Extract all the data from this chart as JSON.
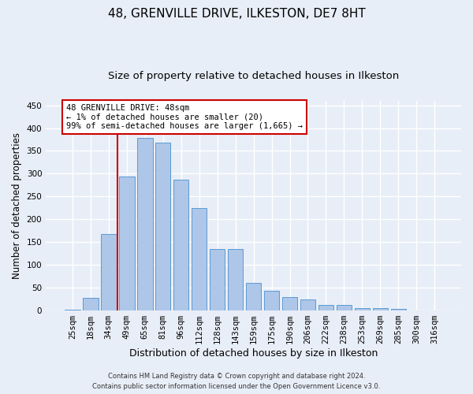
{
  "title": "48, GRENVILLE DRIVE, ILKESTON, DE7 8HT",
  "subtitle": "Size of property relative to detached houses in Ilkeston",
  "xlabel": "Distribution of detached houses by size in Ilkeston",
  "ylabel": "Number of detached properties",
  "categories": [
    "25sqm",
    "18sqm",
    "34sqm",
    "49sqm",
    "65sqm",
    "81sqm",
    "96sqm",
    "112sqm",
    "128sqm",
    "143sqm",
    "159sqm",
    "175sqm",
    "190sqm",
    "206sqm",
    "222sqm",
    "238sqm",
    "253sqm",
    "269sqm",
    "285sqm",
    "300sqm",
    "316sqm"
  ],
  "values": [
    2,
    27,
    168,
    293,
    379,
    368,
    287,
    225,
    135,
    135,
    60,
    43,
    30,
    24,
    12,
    12,
    6,
    5,
    3,
    1,
    1
  ],
  "bar_color": "#aec6e8",
  "bar_edge_color": "#5b9bd5",
  "vline_x_index": 3,
  "vline_color": "#cc0000",
  "annotation_text": "48 GRENVILLE DRIVE: 48sqm\n← 1% of detached houses are smaller (20)\n99% of semi-detached houses are larger (1,665) →",
  "annotation_box_color": "#ffffff",
  "annotation_box_edgecolor": "#cc0000",
  "ylim": [
    0,
    460
  ],
  "yticks": [
    0,
    50,
    100,
    150,
    200,
    250,
    300,
    350,
    400,
    450
  ],
  "footer_line1": "Contains HM Land Registry data © Crown copyright and database right 2024.",
  "footer_line2": "Contains public sector information licensed under the Open Government Licence v3.0.",
  "bg_color": "#e8eef7",
  "grid_color": "#ffffff",
  "title_fontsize": 11,
  "subtitle_fontsize": 9.5,
  "axis_label_fontsize": 8.5,
  "tick_fontsize": 7.5,
  "footer_fontsize": 6.0
}
